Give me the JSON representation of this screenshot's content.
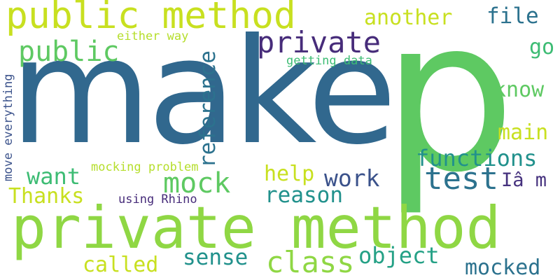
{
  "word_cloud": {
    "background": "#ffffff",
    "palette": {
      "navy": "#3b528b",
      "darkpurple": "#472c7a",
      "purple": "#46327e",
      "teal": "#2c728e",
      "cyan": "#21918c",
      "seagreen": "#25a186",
      "green": "#3dbc74",
      "lime": "#5ec962",
      "yellowgreen": "#8fd744",
      "yellow": "#c8e020"
    },
    "words": [
      {
        "id": "make",
        "text": "make",
        "color": "#31688e"
      },
      {
        "id": "p",
        "text": "p",
        "color": "#5ec962"
      },
      {
        "id": "private-method",
        "text": "private method",
        "color": "#8fd744"
      },
      {
        "id": "public-method",
        "text": "public method",
        "color": "#c8e020"
      },
      {
        "id": "private",
        "text": "private",
        "color": "#472c7a"
      },
      {
        "id": "public",
        "text": "public",
        "color": "#5ec962"
      },
      {
        "id": "another",
        "text": "another",
        "color": "#c8e020"
      },
      {
        "id": "file",
        "text": "file",
        "color": "#2c728e"
      },
      {
        "id": "either-way",
        "text": "either way",
        "color": "#b5de2b"
      },
      {
        "id": "go",
        "text": "go",
        "color": "#3dbc74"
      },
      {
        "id": "getting-data",
        "text": "getting data",
        "color": "#3dbc74"
      },
      {
        "id": "know",
        "text": "know",
        "color": "#5ec962"
      },
      {
        "id": "reference",
        "text": "reference",
        "color": "#2c728e"
      },
      {
        "id": "move-everything",
        "text": "move everything",
        "color": "#3b528b"
      },
      {
        "id": "main",
        "text": "main",
        "color": "#c8e020"
      },
      {
        "id": "functions",
        "text": "functions",
        "color": "#21918c"
      },
      {
        "id": "mocking-problem",
        "text": "mocking problem",
        "color": "#b5de2b"
      },
      {
        "id": "want",
        "text": "want",
        "color": "#3dbc74"
      },
      {
        "id": "mock",
        "text": "mock",
        "color": "#5ec962"
      },
      {
        "id": "help",
        "text": "help",
        "color": "#c8e020"
      },
      {
        "id": "work",
        "text": "work",
        "color": "#3b528b"
      },
      {
        "id": "test",
        "text": "test",
        "color": "#2c728e"
      },
      {
        "id": "im",
        "text": "Iâ m",
        "color": "#46327e"
      },
      {
        "id": "thanks",
        "text": "Thanks",
        "color": "#c8e020"
      },
      {
        "id": "reason",
        "text": "reason",
        "color": "#21918c"
      },
      {
        "id": "using-rhino",
        "text": "using Rhino",
        "color": "#472c7a"
      },
      {
        "id": "called",
        "text": "called",
        "color": "#c8e020"
      },
      {
        "id": "sense",
        "text": "sense",
        "color": "#21918c"
      },
      {
        "id": "class",
        "text": "class",
        "color": "#8fd744"
      },
      {
        "id": "object",
        "text": "object",
        "color": "#25a186"
      },
      {
        "id": "mocked",
        "text": "mocked",
        "color": "#2c728e"
      }
    ]
  }
}
